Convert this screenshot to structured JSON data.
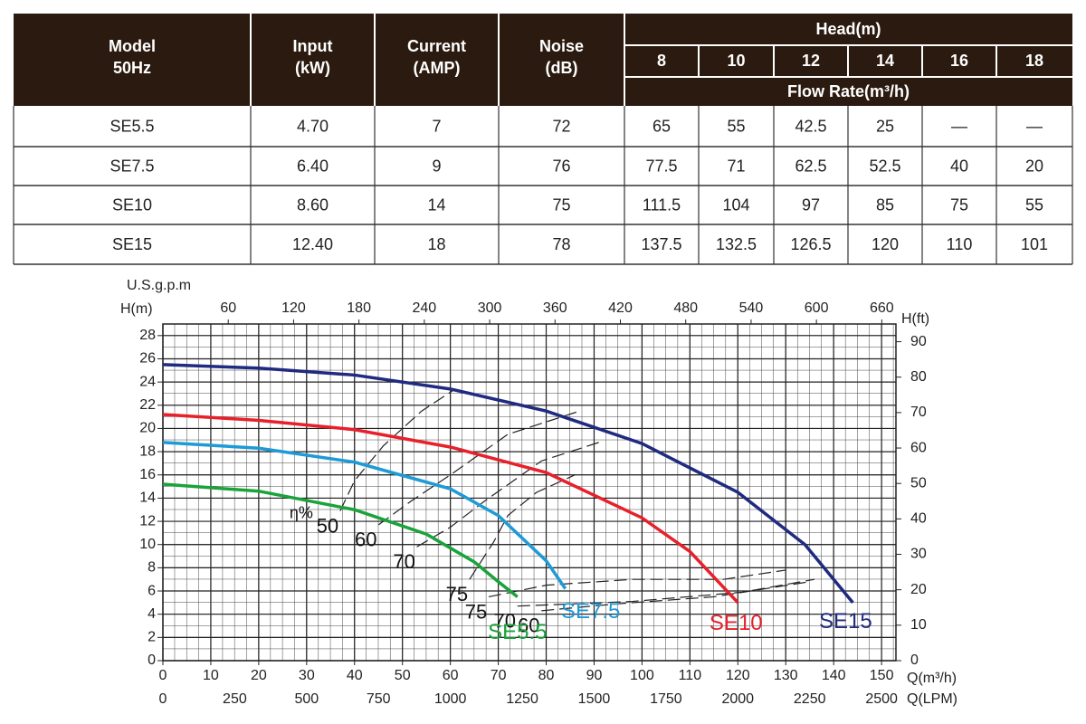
{
  "table": {
    "columns": [
      [
        "Model",
        "50Hz"
      ],
      [
        "Input",
        "(kW)"
      ],
      [
        "Current",
        "(AMP)"
      ],
      [
        "Noise",
        "(dB)"
      ]
    ],
    "head_label": "Head(m)",
    "heads": [
      "8",
      "10",
      "12",
      "14",
      "16",
      "18"
    ],
    "flow_label": "Flow Rate(m³/h)",
    "rows": [
      [
        "SE5.5",
        "4.70",
        "7",
        "72",
        "65",
        "55",
        "42.5",
        "25",
        "—",
        "—"
      ],
      [
        "SE7.5",
        "6.40",
        "9",
        "76",
        "77.5",
        "71",
        "62.5",
        "52.5",
        "40",
        "20"
      ],
      [
        "SE10",
        "8.60",
        "14",
        "75",
        "111.5",
        "104",
        "97",
        "85",
        "75",
        "55"
      ],
      [
        "SE15",
        "12.40",
        "18",
        "78",
        "137.5",
        "132.5",
        "126.5",
        "120",
        "110",
        "101"
      ]
    ]
  },
  "chart_data": {
    "type": "line",
    "xlabel": "Q(m³/h)",
    "ylabel": "H(m)",
    "y2label": "H(ft)",
    "x2label": "U.S.g.p.m",
    "x3label": "Q(LPM)",
    "xlim": [
      0,
      153
    ],
    "xticks": [
      0,
      10,
      20,
      30,
      40,
      50,
      60,
      70,
      80,
      90,
      100,
      110,
      120,
      130,
      140,
      150
    ],
    "x2lim": [
      0,
      673
    ],
    "x2ticks": [
      60,
      120,
      180,
      240,
      300,
      360,
      420,
      480,
      540,
      600,
      660
    ],
    "x3lim": [
      0,
      2550
    ],
    "x3ticks": [
      0,
      250,
      500,
      750,
      1000,
      1250,
      1500,
      1750,
      2000,
      2250,
      2500
    ],
    "ylim": [
      0,
      29
    ],
    "yticks": [
      0,
      2,
      4,
      6,
      8,
      10,
      12,
      14,
      16,
      18,
      20,
      22,
      24,
      26,
      28
    ],
    "y2lim": [
      0,
      95
    ],
    "y2ticks": [
      0,
      10,
      20,
      30,
      40,
      50,
      60,
      70,
      80,
      90
    ],
    "grid": true,
    "series": [
      {
        "name": "SE15",
        "color": "#1f2a80",
        "x": [
          0,
          20,
          40,
          60,
          80,
          100,
          120,
          134,
          144
        ],
        "values": [
          25.5,
          25.2,
          24.6,
          23.4,
          21.5,
          18.7,
          14.5,
          10,
          5
        ]
      },
      {
        "name": "SE10",
        "color": "#e8202a",
        "x": [
          0,
          20,
          40,
          60,
          80,
          100,
          110,
          120
        ],
        "values": [
          21.2,
          20.7,
          19.9,
          18.4,
          16.2,
          12.3,
          9.4,
          5
        ]
      },
      {
        "name": "SE7.5",
        "color": "#1e9ad6",
        "x": [
          0,
          20,
          40,
          60,
          70,
          80,
          84
        ],
        "values": [
          18.8,
          18.3,
          17.1,
          14.8,
          12.5,
          8.6,
          6.2
        ]
      },
      {
        "name": "SE5.5",
        "color": "#1aa33a",
        "x": [
          0,
          20,
          40,
          55,
          65,
          70,
          74
        ],
        "values": [
          15.2,
          14.6,
          13,
          10.9,
          8.5,
          6.8,
          5.5
        ]
      }
    ],
    "efficiency_label": "η%",
    "efficiency_curves": [
      {
        "label": "50",
        "x": [
          37,
          40,
          46,
          54,
          61
        ],
        "values": [
          12.9,
          15.5,
          18.5,
          21.5,
          23.4
        ]
      },
      {
        "label": "60",
        "x": [
          45,
          52,
          60,
          72,
          87
        ],
        "values": [
          11.7,
          13.8,
          16,
          19.5,
          21.5
        ]
      },
      {
        "label": "70",
        "x": [
          53,
          60,
          67,
          79,
          91
        ],
        "values": [
          9.8,
          11.5,
          13.7,
          17.2,
          18.8
        ]
      },
      {
        "label": "75",
        "x": [
          64,
          69,
          72,
          78,
          86
        ],
        "values": [
          7,
          10.2,
          12.5,
          14.5,
          16
        ]
      },
      {
        "label": "75",
        "x": [
          68,
          80,
          98,
          117,
          130
        ],
        "values": [
          5.5,
          6.5,
          7,
          7,
          7.8
        ]
      },
      {
        "label": "70",
        "x": [
          74,
          98,
          121,
          136
        ],
        "values": [
          4.7,
          5.1,
          5.9,
          7
        ]
      },
      {
        "label": "60",
        "x": [
          79,
          95,
          115,
          135
        ],
        "values": [
          4.3,
          4.9,
          5.5,
          6.8
        ]
      }
    ]
  }
}
